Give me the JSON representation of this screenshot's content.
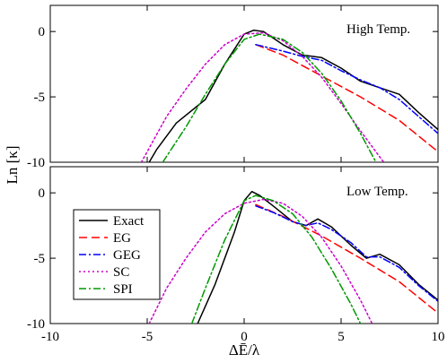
{
  "chart_data": {
    "type": "line",
    "ylabel": "Ln [κ]",
    "xlabel": "ΔĒ/λ",
    "xlim": [
      -10,
      10
    ],
    "x_ticks": [
      -10,
      -5,
      0,
      5,
      10
    ],
    "legend": {
      "placement": "lower-left of bottom panel",
      "entries": [
        "Exact",
        "EG",
        "GEG",
        "SC",
        "SPI"
      ]
    },
    "styles": [
      {
        "name": "Exact",
        "color": "#000000",
        "dash": "none"
      },
      {
        "name": "EG",
        "color": "#ff0000",
        "dash": "dashed"
      },
      {
        "name": "GEG",
        "color": "#0000ff",
        "dash": "dashdot"
      },
      {
        "name": "SC",
        "color": "#cc00cc",
        "dash": "dotted"
      },
      {
        "name": "SPI",
        "color": "#009900",
        "dash": "dashdot"
      }
    ],
    "panels": [
      {
        "label": "High Temp.",
        "ylim": [
          -10,
          2
        ],
        "y_ticks": [
          0,
          -5,
          -10
        ],
        "series": [
          {
            "name": "Exact",
            "points": [
              [
                -4.9,
                -10
              ],
              [
                -4.5,
                -9
              ],
              [
                -3.5,
                -7
              ],
              [
                -2,
                -5.2
              ],
              [
                -1,
                -2.5
              ],
              [
                0,
                -0.2
              ],
              [
                0.5,
                0.1
              ],
              [
                1,
                0
              ],
              [
                2,
                -1
              ],
              [
                3,
                -1.8
              ],
              [
                4,
                -2
              ],
              [
                5,
                -2.8
              ],
              [
                6,
                -3.8
              ],
              [
                7,
                -4.3
              ],
              [
                8,
                -4.8
              ],
              [
                9,
                -6.2
              ],
              [
                10,
                -7.5
              ]
            ]
          },
          {
            "name": "EG",
            "points": [
              [
                0.6,
                -1.0
              ],
              [
                2,
                -1.8
              ],
              [
                4,
                -3.4
              ],
              [
                6,
                -5.0
              ],
              [
                8,
                -6.8
              ],
              [
                10,
                -9.2
              ]
            ]
          },
          {
            "name": "GEG",
            "points": [
              [
                0.6,
                -1.0
              ],
              [
                2,
                -1.5
              ],
              [
                3,
                -1.9
              ],
              [
                4,
                -2.2
              ],
              [
                5,
                -3.0
              ],
              [
                6,
                -3.7
              ],
              [
                7,
                -4.3
              ],
              [
                8,
                -5.2
              ],
              [
                9,
                -6.5
              ],
              [
                10,
                -7.8
              ]
            ]
          },
          {
            "name": "SC",
            "points": [
              [
                -5.3,
                -10
              ],
              [
                -4,
                -6.5
              ],
              [
                -3,
                -4.4
              ],
              [
                -2,
                -2.5
              ],
              [
                -1,
                -1.0
              ],
              [
                0,
                -0.2
              ],
              [
                1,
                -0.1
              ],
              [
                2,
                -0.7
              ],
              [
                3,
                -1.9
              ],
              [
                4,
                -3.5
              ],
              [
                5,
                -5.5
              ],
              [
                6,
                -7.6
              ],
              [
                7,
                -9.6
              ],
              [
                7.2,
                -10
              ]
            ]
          },
          {
            "name": "SPI",
            "points": [
              [
                -4.2,
                -10
              ],
              [
                -3,
                -7.3
              ],
              [
                -2,
                -4.8
              ],
              [
                -1,
                -2.5
              ],
              [
                0,
                -0.6
              ],
              [
                0.8,
                -0.2
              ],
              [
                2,
                -0.6
              ],
              [
                3,
                -1.6
              ],
              [
                4,
                -3.2
              ],
              [
                5,
                -5.3
              ],
              [
                6,
                -7.8
              ],
              [
                6.8,
                -10
              ]
            ]
          }
        ]
      },
      {
        "label": "Low Temp.",
        "ylim": [
          -10,
          2
        ],
        "y_ticks": [
          0,
          -5,
          -10
        ],
        "series": [
          {
            "name": "Exact",
            "points": [
              [
                -2.4,
                -10
              ],
              [
                -1.5,
                -7
              ],
              [
                -0.5,
                -3
              ],
              [
                0,
                -0.6
              ],
              [
                0.4,
                0.1
              ],
              [
                0.8,
                -0.2
              ],
              [
                1.5,
                -1.0
              ],
              [
                2.5,
                -2.2
              ],
              [
                3.2,
                -2.5
              ],
              [
                3.8,
                -2.0
              ],
              [
                4.5,
                -2.6
              ],
              [
                5.5,
                -4.0
              ],
              [
                6.3,
                -5.0
              ],
              [
                7,
                -4.7
              ],
              [
                8,
                -5.5
              ],
              [
                9,
                -7.0
              ],
              [
                10,
                -8.2
              ]
            ]
          },
          {
            "name": "EG",
            "points": [
              [
                0.6,
                -0.9
              ],
              [
                2,
                -1.8
              ],
              [
                4,
                -3.3
              ],
              [
                6,
                -5.0
              ],
              [
                8,
                -6.8
              ],
              [
                10,
                -9.2
              ]
            ]
          },
          {
            "name": "GEG",
            "points": [
              [
                0.6,
                -1.0
              ],
              [
                1.5,
                -1.5
              ],
              [
                2.5,
                -2.2
              ],
              [
                3.2,
                -2.5
              ],
              [
                3.8,
                -2.3
              ],
              [
                4.5,
                -2.8
              ],
              [
                5.5,
                -3.8
              ],
              [
                6.3,
                -4.9
              ],
              [
                7,
                -4.9
              ],
              [
                8,
                -5.7
              ],
              [
                9,
                -7.1
              ],
              [
                10,
                -8.3
              ]
            ]
          },
          {
            "name": "SC",
            "points": [
              [
                -4.9,
                -10
              ],
              [
                -4,
                -7.3
              ],
              [
                -3,
                -5.0
              ],
              [
                -2,
                -3.0
              ],
              [
                -1,
                -1.6
              ],
              [
                0,
                -0.8
              ],
              [
                1,
                -0.5
              ],
              [
                2,
                -0.8
              ],
              [
                3,
                -1.8
              ],
              [
                4,
                -3.4
              ],
              [
                5,
                -5.6
              ],
              [
                6,
                -8.2
              ],
              [
                6.6,
                -10
              ]
            ]
          },
          {
            "name": "SPI",
            "points": [
              [
                -2.7,
                -10
              ],
              [
                -2,
                -7.3
              ],
              [
                -1,
                -3.6
              ],
              [
                0,
                -0.6
              ],
              [
                0.6,
                -0.2
              ],
              [
                1.5,
                -0.6
              ],
              [
                2.5,
                -1.6
              ],
              [
                3.5,
                -3.4
              ],
              [
                4.5,
                -5.8
              ],
              [
                5.5,
                -8.5
              ],
              [
                6.0,
                -10
              ]
            ]
          }
        ]
      }
    ]
  }
}
